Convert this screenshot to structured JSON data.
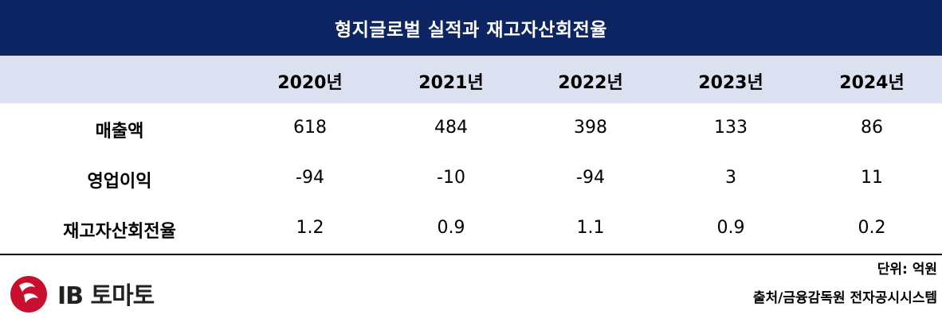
{
  "title": "형지글로벌 실적과 재고자산회전율",
  "chart_data": {
    "type": "table",
    "columns": [
      "2020년",
      "2021년",
      "2022년",
      "2023년",
      "2024년"
    ],
    "rows": [
      {
        "label": "매출액",
        "values": [
          "618",
          "484",
          "398",
          "133",
          "86"
        ]
      },
      {
        "label": "영업이익",
        "values": [
          "-94",
          "-10",
          "-94",
          "3",
          "11"
        ]
      },
      {
        "label": "재고자산회전율",
        "values": [
          "1.2",
          "0.9",
          "1.1",
          "0.9",
          "0.2"
        ]
      }
    ]
  },
  "unit": "단위: 억원",
  "source": "출처/금융감독원 전자공시시스템",
  "logo": {
    "text": "IB 토마토",
    "color": "#c8102e"
  },
  "colors": {
    "title_bg": "#0d2563",
    "header_bg": "#dbe1f1"
  }
}
